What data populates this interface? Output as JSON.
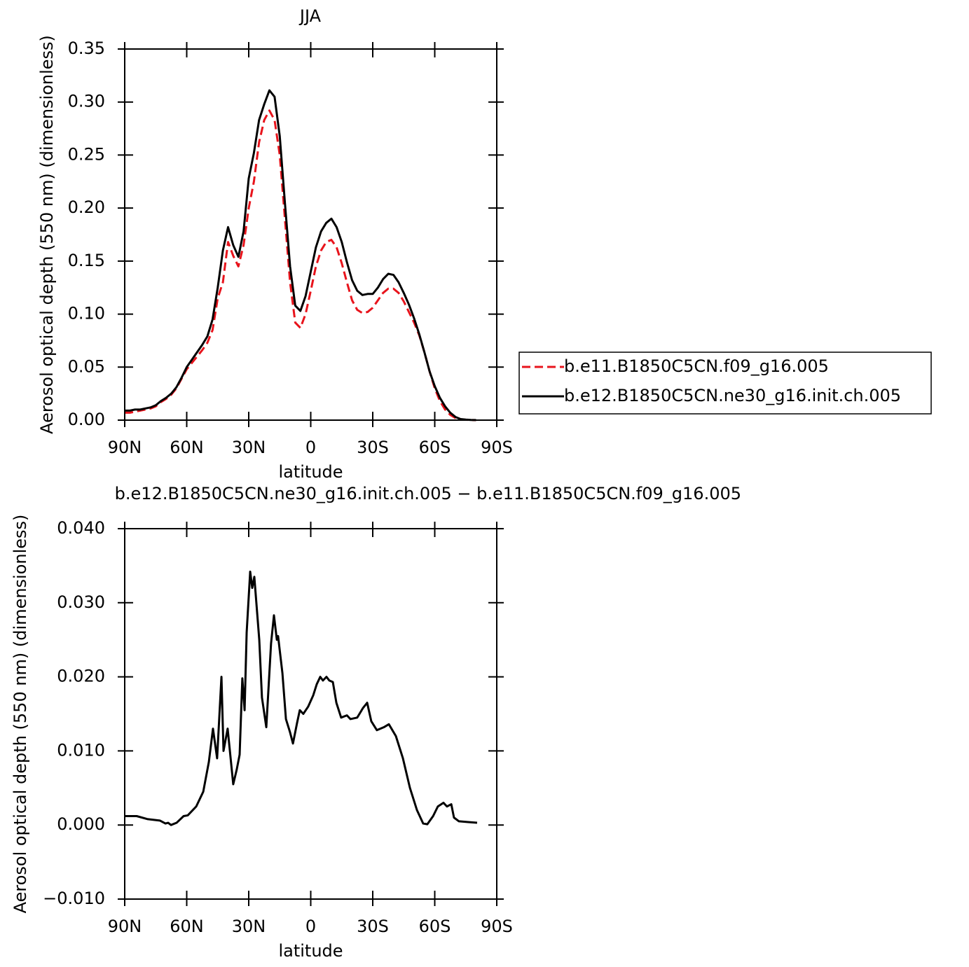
{
  "chart_data": [
    {
      "type": "line",
      "title": "JJA",
      "xlabel": "latitude",
      "ylabel": "Aerosol optical depth (550 nm) (dimensionless)",
      "legend": "right",
      "x": [
        90,
        87.5,
        85,
        82.5,
        80,
        77.5,
        75,
        72.5,
        70,
        67.5,
        65,
        62.5,
        60,
        57.5,
        55,
        52.5,
        50,
        47.5,
        45,
        42.5,
        40,
        37.5,
        35,
        32.5,
        30,
        27.5,
        25,
        22.5,
        20,
        17.5,
        15,
        12.5,
        10,
        7.5,
        5,
        2.5,
        0,
        -2.5,
        -5,
        -7.5,
        -10,
        -12.5,
        -15,
        -17.5,
        -20,
        -22.5,
        -25,
        -27.5,
        -30,
        -32.5,
        -35,
        -37.5,
        -40,
        -42.5,
        -45,
        -47.5,
        -50,
        -52.5,
        -55,
        -57.5,
        -60,
        -62.5,
        -65,
        -67.5,
        -70,
        -72.5,
        -75,
        -77.5,
        -80
      ],
      "series": [
        {
          "name": "b.e11.B1850C5CN.f09_g16.005",
          "color": "#e8141c",
          "dashed": true,
          "values": [
            0.007,
            0.007,
            0.008,
            0.009,
            0.01,
            0.011,
            0.013,
            0.017,
            0.02,
            0.024,
            0.03,
            0.039,
            0.048,
            0.054,
            0.06,
            0.066,
            0.073,
            0.085,
            0.115,
            0.13,
            0.168,
            0.155,
            0.145,
            0.165,
            0.2,
            0.225,
            0.262,
            0.283,
            0.292,
            0.283,
            0.25,
            0.19,
            0.13,
            0.092,
            0.087,
            0.1,
            0.122,
            0.145,
            0.16,
            0.168,
            0.17,
            0.163,
            0.148,
            0.13,
            0.113,
            0.104,
            0.101,
            0.102,
            0.106,
            0.113,
            0.12,
            0.124,
            0.124,
            0.12,
            0.112,
            0.102,
            0.092,
            0.08,
            0.064,
            0.046,
            0.03,
            0.018,
            0.01,
            0.005,
            0.002,
            0.0008,
            0.0003,
            0.0001,
            0
          ]
        },
        {
          "name": "b.e12.B1850C5CN.ne30_g16.init.ch.005",
          "color": "#000000",
          "dashed": false,
          "values": [
            0.009,
            0.009,
            0.01,
            0.01,
            0.011,
            0.012,
            0.014,
            0.018,
            0.021,
            0.025,
            0.031,
            0.04,
            0.05,
            0.057,
            0.064,
            0.071,
            0.079,
            0.095,
            0.125,
            0.16,
            0.182,
            0.165,
            0.154,
            0.178,
            0.228,
            0.252,
            0.283,
            0.298,
            0.311,
            0.305,
            0.268,
            0.205,
            0.145,
            0.108,
            0.103,
            0.117,
            0.14,
            0.163,
            0.178,
            0.186,
            0.19,
            0.182,
            0.168,
            0.149,
            0.132,
            0.122,
            0.118,
            0.119,
            0.119,
            0.125,
            0.133,
            0.138,
            0.137,
            0.13,
            0.12,
            0.109,
            0.096,
            0.081,
            0.064,
            0.046,
            0.032,
            0.021,
            0.013,
            0.007,
            0.003,
            0.001,
            0.0005,
            0.0002,
            0.0001
          ]
        }
      ],
      "xlim": [
        90,
        -90
      ],
      "xticks": [
        {
          "value": 90,
          "label": "90N"
        },
        {
          "value": 60,
          "label": "60N"
        },
        {
          "value": 30,
          "label": "30N"
        },
        0,
        {
          "value": -30,
          "label": "30S"
        },
        {
          "value": -60,
          "label": "60S"
        },
        {
          "value": -90,
          "label": "90S"
        }
      ],
      "ylim": [
        0,
        0.35
      ],
      "yticks": [
        {
          "value": 0,
          "label": "0.00"
        },
        0.05,
        {
          "value": 0.1,
          "label": "0.10"
        },
        0.15,
        {
          "value": 0.2,
          "label": "0.20"
        },
        0.25,
        {
          "value": 0.3,
          "label": "0.30"
        },
        0.35
      ]
    },
    {
      "type": "line",
      "title": "b.e12.B1850C5CN.ne30_g16.init.ch.005 − b.e11.B1850C5CN.f09_g16.005",
      "xlabel": "latitude",
      "ylabel": "Aerosol optical depth (550 nm) (dimensionless)",
      "x": [
        90,
        84.2,
        79.1,
        73,
        70.3,
        69,
        67.6,
        64.9,
        61.5,
        59.5,
        55.4,
        52,
        49.3,
        47.3,
        45.3,
        43.2,
        42.2,
        40.2,
        37.5,
        35.8,
        34.4,
        33.1,
        32,
        31,
        29.3,
        28.3,
        27.3,
        24.9,
        23.6,
        21.5,
        19.2,
        17.8,
        16.4,
        15.8,
        13.7,
        12,
        10,
        8.6,
        6.6,
        5.3,
        3.6,
        1.2,
        -1.2,
        -2.9,
        -4.6,
        -5.9,
        -7.6,
        -9,
        -10.7,
        -12.4,
        -14.7,
        -17.5,
        -19.2,
        -22.5,
        -25.3,
        -27.3,
        -29.3,
        -32,
        -35.4,
        -37.8,
        -41.2,
        -44.6,
        -48,
        -51.4,
        -54.4,
        -56.4,
        -59.2,
        -61.5,
        -64.2,
        -65.9,
        -68,
        -69.3,
        -71.7,
        -76.1,
        -80.5
      ],
      "series": [
        {
          "color": "#000000",
          "dashed": false,
          "values": [
            0.0012,
            0.0012,
            0.0008,
            0.0006,
            0.0002,
            0.0003,
            0,
            0.0003,
            0.0012,
            0.0013,
            0.0025,
            0.0045,
            0.0085,
            0.013,
            0.009,
            0.02,
            0.01,
            0.013,
            0.0055,
            0.0075,
            0.0095,
            0.0198,
            0.0155,
            0.026,
            0.0342,
            0.032,
            0.0335,
            0.025,
            0.0172,
            0.0132,
            0.0245,
            0.0283,
            0.025,
            0.0255,
            0.0205,
            0.0143,
            0.0125,
            0.011,
            0.0138,
            0.0155,
            0.015,
            0.016,
            0.0175,
            0.019,
            0.02,
            0.0195,
            0.02,
            0.0195,
            0.0193,
            0.0165,
            0.0145,
            0.0148,
            0.0143,
            0.0145,
            0.0158,
            0.0165,
            0.014,
            0.0128,
            0.0132,
            0.0136,
            0.012,
            0.009,
            0.005,
            0.002,
            0.0002,
            0.0001,
            0.0012,
            0.0025,
            0.003,
            0.0025,
            0.0028,
            0.001,
            0.0005,
            0.0004,
            0.0003
          ]
        }
      ],
      "xlim": [
        90,
        -90
      ],
      "xticks": [
        {
          "value": 90,
          "label": "90N"
        },
        {
          "value": 60,
          "label": "60N"
        },
        {
          "value": 30,
          "label": "30N"
        },
        0,
        {
          "value": -30,
          "label": "30S"
        },
        {
          "value": -60,
          "label": "60S"
        },
        {
          "value": -90,
          "label": "90S"
        }
      ],
      "ylim": [
        -0.01,
        0.04
      ],
      "yticks": [
        {
          "value": -0.01,
          "label": "−0.010"
        },
        {
          "value": 0,
          "label": "0.000"
        },
        {
          "value": 0.01,
          "label": "0.010"
        },
        {
          "value": 0.02,
          "label": "0.020"
        },
        {
          "value": 0.03,
          "label": "0.030"
        },
        {
          "value": 0.04,
          "label": "0.040"
        }
      ]
    }
  ]
}
